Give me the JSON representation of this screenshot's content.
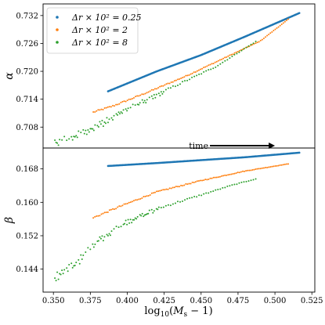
{
  "chart_data": {
    "type": "scatter",
    "x_axis": {
      "label": "log10(Ms−1)",
      "lim": [
        0.343,
        0.527
      ],
      "ticks": [
        0.35,
        0.375,
        0.4,
        0.425,
        0.45,
        0.475,
        0.5,
        0.525
      ],
      "tick_labels": [
        "0.350",
        "0.375",
        "0.400",
        "0.425",
        "0.450",
        "0.475",
        "0.500",
        "0.525"
      ]
    },
    "legend": {
      "placement": "top-left",
      "entries": [
        "Δr × 10² = 0.25",
        "Δr × 10² = 2",
        "Δr × 10² = 8"
      ]
    },
    "annotation": {
      "text": "time",
      "arrow": "right",
      "x_from": 0.456,
      "x_to": 0.5,
      "y": 0.704
    },
    "panels": [
      {
        "id": "alpha",
        "ylabel": "α",
        "ylim": [
          0.7035,
          0.7345
        ],
        "yticks": [
          0.708,
          0.714,
          0.72,
          0.726,
          0.732
        ],
        "ytick_labels": [
          "0.708",
          "0.714",
          "0.720",
          "0.726",
          "0.732"
        ],
        "series": [
          {
            "name": "Δr × 10² = 0.25",
            "color": "#1f77b4",
            "style": "dense",
            "x_range": [
              0.387,
              0.517
            ],
            "points": [
              [
                0.387,
                0.7157
              ],
              [
                0.42,
                0.72
              ],
              [
                0.45,
                0.7235
              ],
              [
                0.48,
                0.7275
              ],
              [
                0.517,
                0.7326
              ]
            ]
          },
          {
            "name": "Δr × 10² = 2",
            "color": "#ff7f0e",
            "style": "mixed",
            "x_range": [
              0.377,
              0.509
            ],
            "points": [
              [
                0.377,
                0.7112
              ],
              [
                0.39,
                0.7125
              ],
              [
                0.41,
                0.715
              ],
              [
                0.44,
                0.719
              ],
              [
                0.47,
                0.7235
              ],
              [
                0.49,
                0.7265
              ],
              [
                0.509,
                0.7312
              ]
            ]
          },
          {
            "name": "Δr × 10² = 8",
            "color": "#2ca02c",
            "style": "sparse",
            "x_range": [
              0.351,
              0.487
            ],
            "points": [
              [
                0.351,
                0.7047
              ],
              [
                0.365,
                0.7063
              ],
              [
                0.38,
                0.7085
              ],
              [
                0.4,
                0.712
              ],
              [
                0.43,
                0.7165
              ],
              [
                0.46,
                0.721
              ],
              [
                0.487,
                0.7264
              ]
            ]
          }
        ]
      },
      {
        "id": "beta",
        "ylabel": "β",
        "ylim": [
          0.1385,
          0.173
        ],
        "yticks": [
          0.144,
          0.152,
          0.16,
          0.168
        ],
        "ytick_labels": [
          "0.144",
          "0.152",
          "0.160",
          "0.168"
        ],
        "series": [
          {
            "name": "Δr × 10² = 0.25",
            "color": "#1f77b4",
            "style": "dense",
            "x_range": [
              0.387,
              0.517
            ],
            "points": [
              [
                0.387,
                0.1687
              ],
              [
                0.42,
                0.1694
              ],
              [
                0.45,
                0.1701
              ],
              [
                0.48,
                0.1708
              ],
              [
                0.517,
                0.1719
              ]
            ]
          },
          {
            "name": "Δr × 10² = 2",
            "color": "#ff7f0e",
            "style": "mixed",
            "x_range": [
              0.377,
              0.509
            ],
            "points": [
              [
                0.377,
                0.1563
              ],
              [
                0.395,
                0.159
              ],
              [
                0.42,
                0.1625
              ],
              [
                0.45,
                0.1652
              ],
              [
                0.48,
                0.1675
              ],
              [
                0.509,
                0.1692
              ]
            ]
          },
          {
            "name": "Δr × 10² = 8",
            "color": "#2ca02c",
            "style": "sparse",
            "x_range": [
              0.351,
              0.487
            ],
            "points": [
              [
                0.351,
                0.1425
              ],
              [
                0.365,
                0.1455
              ],
              [
                0.38,
                0.151
              ],
              [
                0.4,
                0.1555
              ],
              [
                0.42,
                0.1585
              ],
              [
                0.445,
                0.1612
              ],
              [
                0.47,
                0.164
              ],
              [
                0.487,
                0.1656
              ]
            ]
          }
        ]
      }
    ]
  }
}
